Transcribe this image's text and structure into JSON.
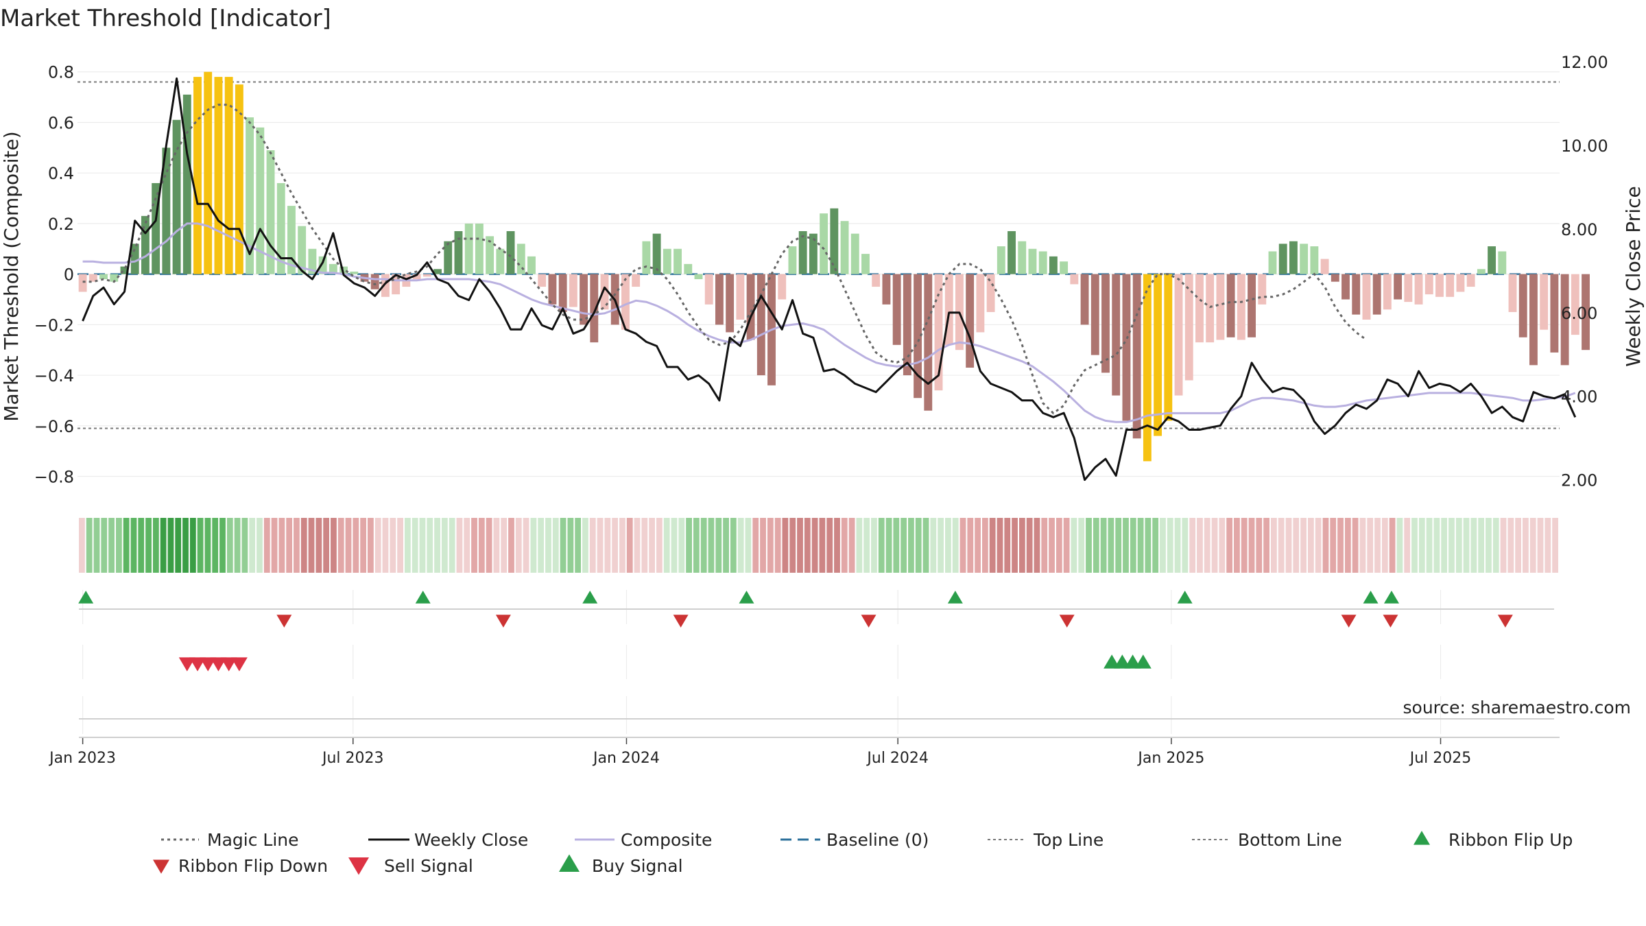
{
  "chart_data": {
    "type": "bar",
    "title": "Market Threshold [Indicator]",
    "ylabel": "Market Threshold (Composite)",
    "y2label": "Weekly Close Price",
    "ylim": [
      -0.88,
      0.84
    ],
    "y2lim": [
      1.6,
      12.0
    ],
    "yticks": [
      0.8,
      0.6,
      0.4,
      0.2,
      0,
      -0.2,
      -0.4,
      -0.6,
      -0.8
    ],
    "ytick_labels": [
      "0.8",
      "0.6",
      "0.4",
      "0.2",
      "0",
      "−0.2",
      "−0.4",
      "−0.6",
      "−0.8"
    ],
    "y2ticks": [
      12,
      10,
      8,
      6,
      4,
      2
    ],
    "y2tick_labels": [
      "12.00",
      "10.00",
      "8.00",
      "6.00",
      "4.00",
      "2.00"
    ],
    "xlim_week": [
      -0.5,
      141.5
    ],
    "xticks": [
      {
        "label": "Jan 2023",
        "week": 0
      },
      {
        "label": "Jul 2023",
        "week": 25.9
      },
      {
        "label": "Jan 2024",
        "week": 52.1
      },
      {
        "label": "Jul 2024",
        "week": 78.1
      },
      {
        "label": "Jan 2025",
        "week": 104.3
      },
      {
        "label": "Jul 2025",
        "week": 130.1
      }
    ],
    "top_line": 0.76,
    "bottom_line": -0.61,
    "baseline": 0,
    "composite_bars": [
      -0.07,
      -0.03,
      -0.02,
      -0.03,
      0.03,
      0.12,
      0.23,
      0.36,
      0.5,
      0.61,
      0.71,
      0.78,
      0.8,
      0.78,
      0.78,
      0.75,
      0.62,
      0.58,
      0.49,
      0.36,
      0.27,
      0.19,
      0.1,
      0.07,
      0.04,
      0.03,
      0.01,
      -0.03,
      -0.06,
      -0.09,
      -0.08,
      -0.05,
      -0.02,
      -0.01,
      0.02,
      0.13,
      0.17,
      0.2,
      0.2,
      0.15,
      0.1,
      0.17,
      0.12,
      0.07,
      -0.05,
      -0.12,
      -0.15,
      -0.13,
      -0.2,
      -0.27,
      -0.14,
      -0.2,
      -0.22,
      -0.05,
      0.13,
      0.16,
      0.1,
      0.1,
      0.04,
      -0.02,
      -0.12,
      -0.2,
      -0.23,
      -0.18,
      -0.26,
      -0.4,
      -0.44,
      -0.1,
      0.11,
      0.17,
      0.16,
      0.24,
      0.26,
      0.21,
      0.16,
      0.08,
      -0.05,
      -0.12,
      -0.28,
      -0.4,
      -0.49,
      -0.54,
      -0.46,
      -0.28,
      -0.3,
      -0.37,
      -0.23,
      -0.15,
      0.11,
      0.17,
      0.13,
      0.1,
      0.09,
      0.07,
      0.05,
      -0.04,
      -0.2,
      -0.32,
      -0.39,
      -0.48,
      -0.58,
      -0.65,
      -0.74,
      -0.64,
      -0.58,
      -0.48,
      -0.42,
      -0.27,
      -0.27,
      -0.26,
      -0.25,
      -0.26,
      -0.25,
      -0.12,
      0.09,
      0.12,
      0.13,
      0.12,
      0.11,
      0.06,
      -0.03,
      -0.1,
      -0.16,
      -0.18,
      -0.16,
      -0.14,
      -0.1,
      -0.11,
      -0.12,
      -0.08,
      -0.09,
      -0.09,
      -0.07,
      -0.05,
      0.02,
      0.11,
      0.09,
      -0.15,
      -0.25,
      -0.36,
      -0.22,
      -0.31,
      -0.36,
      -0.24,
      -0.3
    ],
    "bar_class": [
      "lr",
      "lr",
      "lg",
      "lg",
      "dg",
      "dg",
      "dg",
      "dg",
      "dg",
      "dg",
      "dg",
      "y",
      "y",
      "y",
      "y",
      "y",
      "lg",
      "lg",
      "lg",
      "lg",
      "lg",
      "lg",
      "lg",
      "lg",
      "lg",
      "lg",
      "lg",
      "dr",
      "dr",
      "lr",
      "lr",
      "lr",
      "lr",
      "lr",
      "dg",
      "dg",
      "dg",
      "lg",
      "lg",
      "lg",
      "lg",
      "dg",
      "lg",
      "lg",
      "lr",
      "dr",
      "dr",
      "lr",
      "dr",
      "dr",
      "lr",
      "dr",
      "lr",
      "lr",
      "lg",
      "dg",
      "lg",
      "lg",
      "lg",
      "lg",
      "lr",
      "dr",
      "dr",
      "lr",
      "dr",
      "dr",
      "dr",
      "lr",
      "lg",
      "dg",
      "dg",
      "lg",
      "dg",
      "lg",
      "lg",
      "lg",
      "lr",
      "dr",
      "dr",
      "dr",
      "dr",
      "dr",
      "lr",
      "lr",
      "lr",
      "dr",
      "lr",
      "lr",
      "lg",
      "dg",
      "lg",
      "lg",
      "lg",
      "dg",
      "lg",
      "lr",
      "dr",
      "dr",
      "dr",
      "dr",
      "dr",
      "dr",
      "y",
      "y",
      "y",
      "lr",
      "lr",
      "lr",
      "lr",
      "lr",
      "dr",
      "lr",
      "dr",
      "lr",
      "lg",
      "dg",
      "dg",
      "lg",
      "lg",
      "lr",
      "dr",
      "dr",
      "dr",
      "lr",
      "dr",
      "lr",
      "dr",
      "lr",
      "lr",
      "lr",
      "lr",
      "lr",
      "lr",
      "lr",
      "lg",
      "dg",
      "lg",
      "lr",
      "dr",
      "dr",
      "lr",
      "dr",
      "dr",
      "lr",
      "dr"
    ],
    "series": [
      {
        "name": "Weekly Close",
        "values": [
          5.8,
          6.4,
          6.6,
          6.2,
          6.5,
          8.2,
          7.9,
          8.2,
          10.0,
          11.6,
          9.8,
          8.6,
          8.6,
          8.2,
          8.0,
          8.0,
          7.4,
          8.0,
          7.6,
          7.3,
          7.3,
          7.0,
          6.8,
          7.2,
          7.9,
          6.9,
          6.7,
          6.6,
          6.4,
          6.7,
          6.9,
          6.8,
          6.9,
          7.2,
          6.8,
          6.7,
          6.4,
          6.3,
          6.8,
          6.5,
          6.1,
          5.6,
          5.6,
          6.1,
          5.7,
          5.6,
          6.1,
          5.5,
          5.6,
          6.0,
          6.6,
          6.3,
          5.6,
          5.5,
          5.3,
          5.2,
          4.7,
          4.7,
          4.4,
          4.5,
          4.3,
          3.9,
          5.4,
          5.2,
          5.9,
          6.4,
          6.0,
          5.6,
          6.3,
          5.5,
          5.4,
          4.6,
          4.65,
          4.5,
          4.3,
          4.2,
          4.1,
          4.35,
          4.6,
          4.8,
          4.5,
          4.3,
          4.5,
          6.0,
          6.0,
          5.4,
          4.6,
          4.3,
          4.2,
          4.1,
          3.9,
          3.9,
          3.6,
          3.5,
          3.6,
          3.0,
          2.0,
          2.3,
          2.5,
          2.1,
          3.2,
          3.2,
          3.3,
          3.2,
          3.5,
          3.4,
          3.2,
          3.2,
          3.25,
          3.3,
          3.7,
          4.0,
          4.8,
          4.4,
          4.1,
          4.2,
          4.15,
          3.9,
          3.4,
          3.1,
          3.3,
          3.6,
          3.8,
          3.7,
          3.9,
          4.4,
          4.3,
          4.0,
          4.6,
          4.2,
          4.3,
          4.25,
          4.1,
          4.3,
          4.0,
          3.6,
          3.75,
          3.5,
          3.4,
          4.1,
          4.0,
          3.95,
          4.05,
          3.5
        ]
      },
      {
        "name": "Composite",
        "values": [
          0.05,
          0.05,
          0.045,
          0.045,
          0.045,
          0.05,
          0.07,
          0.1,
          0.13,
          0.17,
          0.2,
          0.2,
          0.19,
          0.17,
          0.15,
          0.13,
          0.11,
          0.09,
          0.07,
          0.05,
          0.035,
          0.025,
          0.015,
          0.005,
          0.005,
          0.0,
          -0.01,
          -0.015,
          -0.02,
          -0.02,
          -0.025,
          -0.025,
          -0.025,
          -0.02,
          -0.02,
          -0.02,
          -0.02,
          -0.02,
          -0.025,
          -0.03,
          -0.04,
          -0.06,
          -0.08,
          -0.1,
          -0.115,
          -0.125,
          -0.135,
          -0.145,
          -0.155,
          -0.16,
          -0.155,
          -0.14,
          -0.12,
          -0.105,
          -0.11,
          -0.125,
          -0.145,
          -0.17,
          -0.2,
          -0.225,
          -0.245,
          -0.26,
          -0.27,
          -0.27,
          -0.26,
          -0.24,
          -0.22,
          -0.205,
          -0.2,
          -0.195,
          -0.205,
          -0.22,
          -0.25,
          -0.28,
          -0.305,
          -0.33,
          -0.35,
          -0.36,
          -0.365,
          -0.36,
          -0.35,
          -0.33,
          -0.3,
          -0.28,
          -0.27,
          -0.275,
          -0.285,
          -0.3,
          -0.315,
          -0.33,
          -0.345,
          -0.365,
          -0.395,
          -0.425,
          -0.46,
          -0.5,
          -0.54,
          -0.565,
          -0.58,
          -0.585,
          -0.585,
          -0.575,
          -0.56,
          -0.555,
          -0.55,
          -0.55,
          -0.55,
          -0.55,
          -0.55,
          -0.55,
          -0.54,
          -0.52,
          -0.5,
          -0.49,
          -0.49,
          -0.495,
          -0.5,
          -0.51,
          -0.52,
          -0.525,
          -0.525,
          -0.52,
          -0.51,
          -0.5,
          -0.495,
          -0.49,
          -0.485,
          -0.48,
          -0.475,
          -0.47,
          -0.47,
          -0.47,
          -0.47,
          -0.47,
          -0.475,
          -0.48,
          -0.485,
          -0.49,
          -0.5,
          -0.5,
          -0.495,
          -0.49,
          -0.485,
          -0.47
        ]
      },
      {
        "name": "Magic Line",
        "values": [
          -0.03,
          -0.03,
          -0.02,
          -0.03,
          0.02,
          0.1,
          0.2,
          0.3,
          0.4,
          0.49,
          0.56,
          0.61,
          0.65,
          0.67,
          0.67,
          0.64,
          0.6,
          0.55,
          0.48,
          0.4,
          0.32,
          0.25,
          0.18,
          0.12,
          0.06,
          0.02,
          -0.01,
          -0.03,
          -0.04,
          -0.03,
          -0.02,
          0.0,
          0.01,
          0.03,
          0.08,
          0.12,
          0.14,
          0.14,
          0.14,
          0.13,
          0.1,
          0.07,
          0.03,
          -0.02,
          -0.07,
          -0.12,
          -0.16,
          -0.18,
          -0.18,
          -0.16,
          -0.13,
          -0.08,
          -0.02,
          0.02,
          0.03,
          0.02,
          -0.02,
          -0.08,
          -0.15,
          -0.21,
          -0.26,
          -0.28,
          -0.27,
          -0.22,
          -0.15,
          -0.08,
          0.0,
          0.08,
          0.13,
          0.15,
          0.14,
          0.1,
          0.03,
          -0.06,
          -0.15,
          -0.24,
          -0.31,
          -0.34,
          -0.35,
          -0.33,
          -0.27,
          -0.18,
          -0.08,
          0.0,
          0.04,
          0.04,
          0.02,
          -0.03,
          -0.1,
          -0.18,
          -0.28,
          -0.4,
          -0.51,
          -0.55,
          -0.52,
          -0.44,
          -0.38,
          -0.36,
          -0.34,
          -0.32,
          -0.26,
          -0.16,
          -0.06,
          0.0,
          0.0,
          -0.02,
          -0.06,
          -0.1,
          -0.13,
          -0.12,
          -0.11,
          -0.11,
          -0.1,
          -0.09,
          -0.09,
          -0.08,
          -0.06,
          -0.03,
          0.0,
          -0.05,
          -0.13,
          -0.19,
          -0.23,
          -0.26
        ]
      }
    ],
    "ribbon_class": [
      "r1",
      "g2",
      "g2",
      "g2",
      "g2",
      "g2",
      "g3",
      "g3",
      "g3",
      "g3",
      "g3",
      "g4",
      "g4",
      "g4",
      "g4",
      "g4",
      "g3",
      "g3",
      "g3",
      "g3",
      "g2",
      "g2",
      "g2",
      "g1",
      "g1",
      "r2",
      "r2",
      "r2",
      "r2",
      "r2",
      "r3",
      "r3",
      "r3",
      "r3",
      "r3",
      "r2",
      "r2",
      "r2",
      "r2",
      "r2",
      "r1",
      "r1",
      "r1",
      "r1",
      "g1",
      "g1",
      "g1",
      "g1",
      "g1",
      "g1",
      "g1",
      "r1",
      "r1",
      "r2",
      "r2",
      "r2",
      "r1",
      "r1",
      "r2",
      "r1",
      "r1",
      "g1",
      "g1",
      "g1",
      "g1",
      "g2",
      "g2",
      "g2",
      "g1",
      "r1",
      "r1",
      "r1",
      "r1",
      "r1",
      "r2",
      "r1",
      "r1",
      "r1",
      "r1",
      "g1",
      "g1",
      "g1",
      "g2",
      "g2",
      "g2",
      "g2",
      "g2",
      "g2",
      "g2",
      "g1",
      "g1",
      "r2",
      "r2",
      "r2",
      "r2",
      "r3",
      "r3",
      "r3",
      "r3",
      "r3",
      "r3",
      "r3",
      "r3",
      "r2",
      "r2",
      "g1",
      "g1",
      "g1",
      "g2",
      "g2",
      "g2",
      "g2",
      "g2",
      "g2",
      "g2",
      "g1",
      "g1",
      "g1",
      "g1",
      "r2",
      "r2",
      "r2",
      "r2",
      "r3",
      "r3",
      "r3",
      "r3",
      "r3",
      "r3",
      "r3",
      "r2",
      "r2",
      "r2",
      "r2",
      "g1",
      "g1",
      "g2",
      "g2",
      "g2",
      "g2",
      "g2",
      "g2",
      "g2",
      "g2",
      "g2",
      "g2",
      "g1",
      "g1",
      "g1",
      "g1",
      "r1",
      "r1",
      "r1",
      "r1",
      "r1",
      "r2",
      "r2",
      "r2",
      "r2",
      "r2",
      "r2",
      "r1",
      "r1",
      "r1",
      "r1",
      "r1",
      "r1",
      "r1",
      "r2",
      "r2",
      "r2",
      "r2",
      "r2",
      "r1",
      "r1",
      "r1",
      "r1",
      "r2",
      "g1",
      "r1",
      "g1",
      "g1",
      "g1",
      "g1",
      "g1",
      "g1",
      "g1",
      "g1",
      "g1",
      "g1",
      "g1",
      "g1",
      "r1",
      "r1",
      "r1",
      "r1",
      "r1",
      "r1",
      "r1",
      "r1"
    ],
    "ribbon_flip_up_weeks": [
      0.3,
      32.6,
      48.6,
      63.6,
      83.6,
      105.6,
      123.4,
      125.4
    ],
    "ribbon_flip_down_weeks": [
      19.3,
      40.3,
      57.3,
      75.3,
      94.3,
      121.3,
      125.3,
      136.3
    ],
    "sell_signal_weeks": [
      10,
      11,
      12,
      13,
      14,
      15
    ],
    "buy_signal_weeks": [
      98.6,
      99.6,
      100.6,
      101.6
    ],
    "legend": [
      {
        "key": "magic",
        "label": "Magic Line"
      },
      {
        "key": "close",
        "label": "Weekly Close"
      },
      {
        "key": "composite",
        "label": "Composite"
      },
      {
        "key": "baseline",
        "label": "Baseline (0)"
      },
      {
        "key": "top",
        "label": "Top Line"
      },
      {
        "key": "bottom",
        "label": "Bottom Line"
      },
      {
        "key": "flipup",
        "label": "Ribbon Flip Up"
      },
      {
        "key": "flipdown",
        "label": "Ribbon Flip Down"
      },
      {
        "key": "sell",
        "label": "Sell Signal"
      },
      {
        "key": "buy",
        "label": "Buy Signal"
      }
    ],
    "source_note": "source: sharemaestro.com",
    "colors": {
      "lg": "#a9d8a6",
      "dg": "#5f9460",
      "lr": "#efc0bc",
      "dr": "#ad7570",
      "y": "#f6c211",
      "g1": "#cfe9cf",
      "g2": "#92ce94",
      "g3": "#5cb562",
      "g4": "#3a9e45",
      "r1": "#f0d0d0",
      "r2": "#e2a7a7",
      "r3": "#cd8585",
      "close": "#111111",
      "composite": "#b9b0e0",
      "magic": "#666666",
      "baseline": "#2a6f9a",
      "refline": "#777777",
      "up": "#2a9e4a",
      "down": "#cc3333",
      "sell": "#dd3344"
    }
  }
}
